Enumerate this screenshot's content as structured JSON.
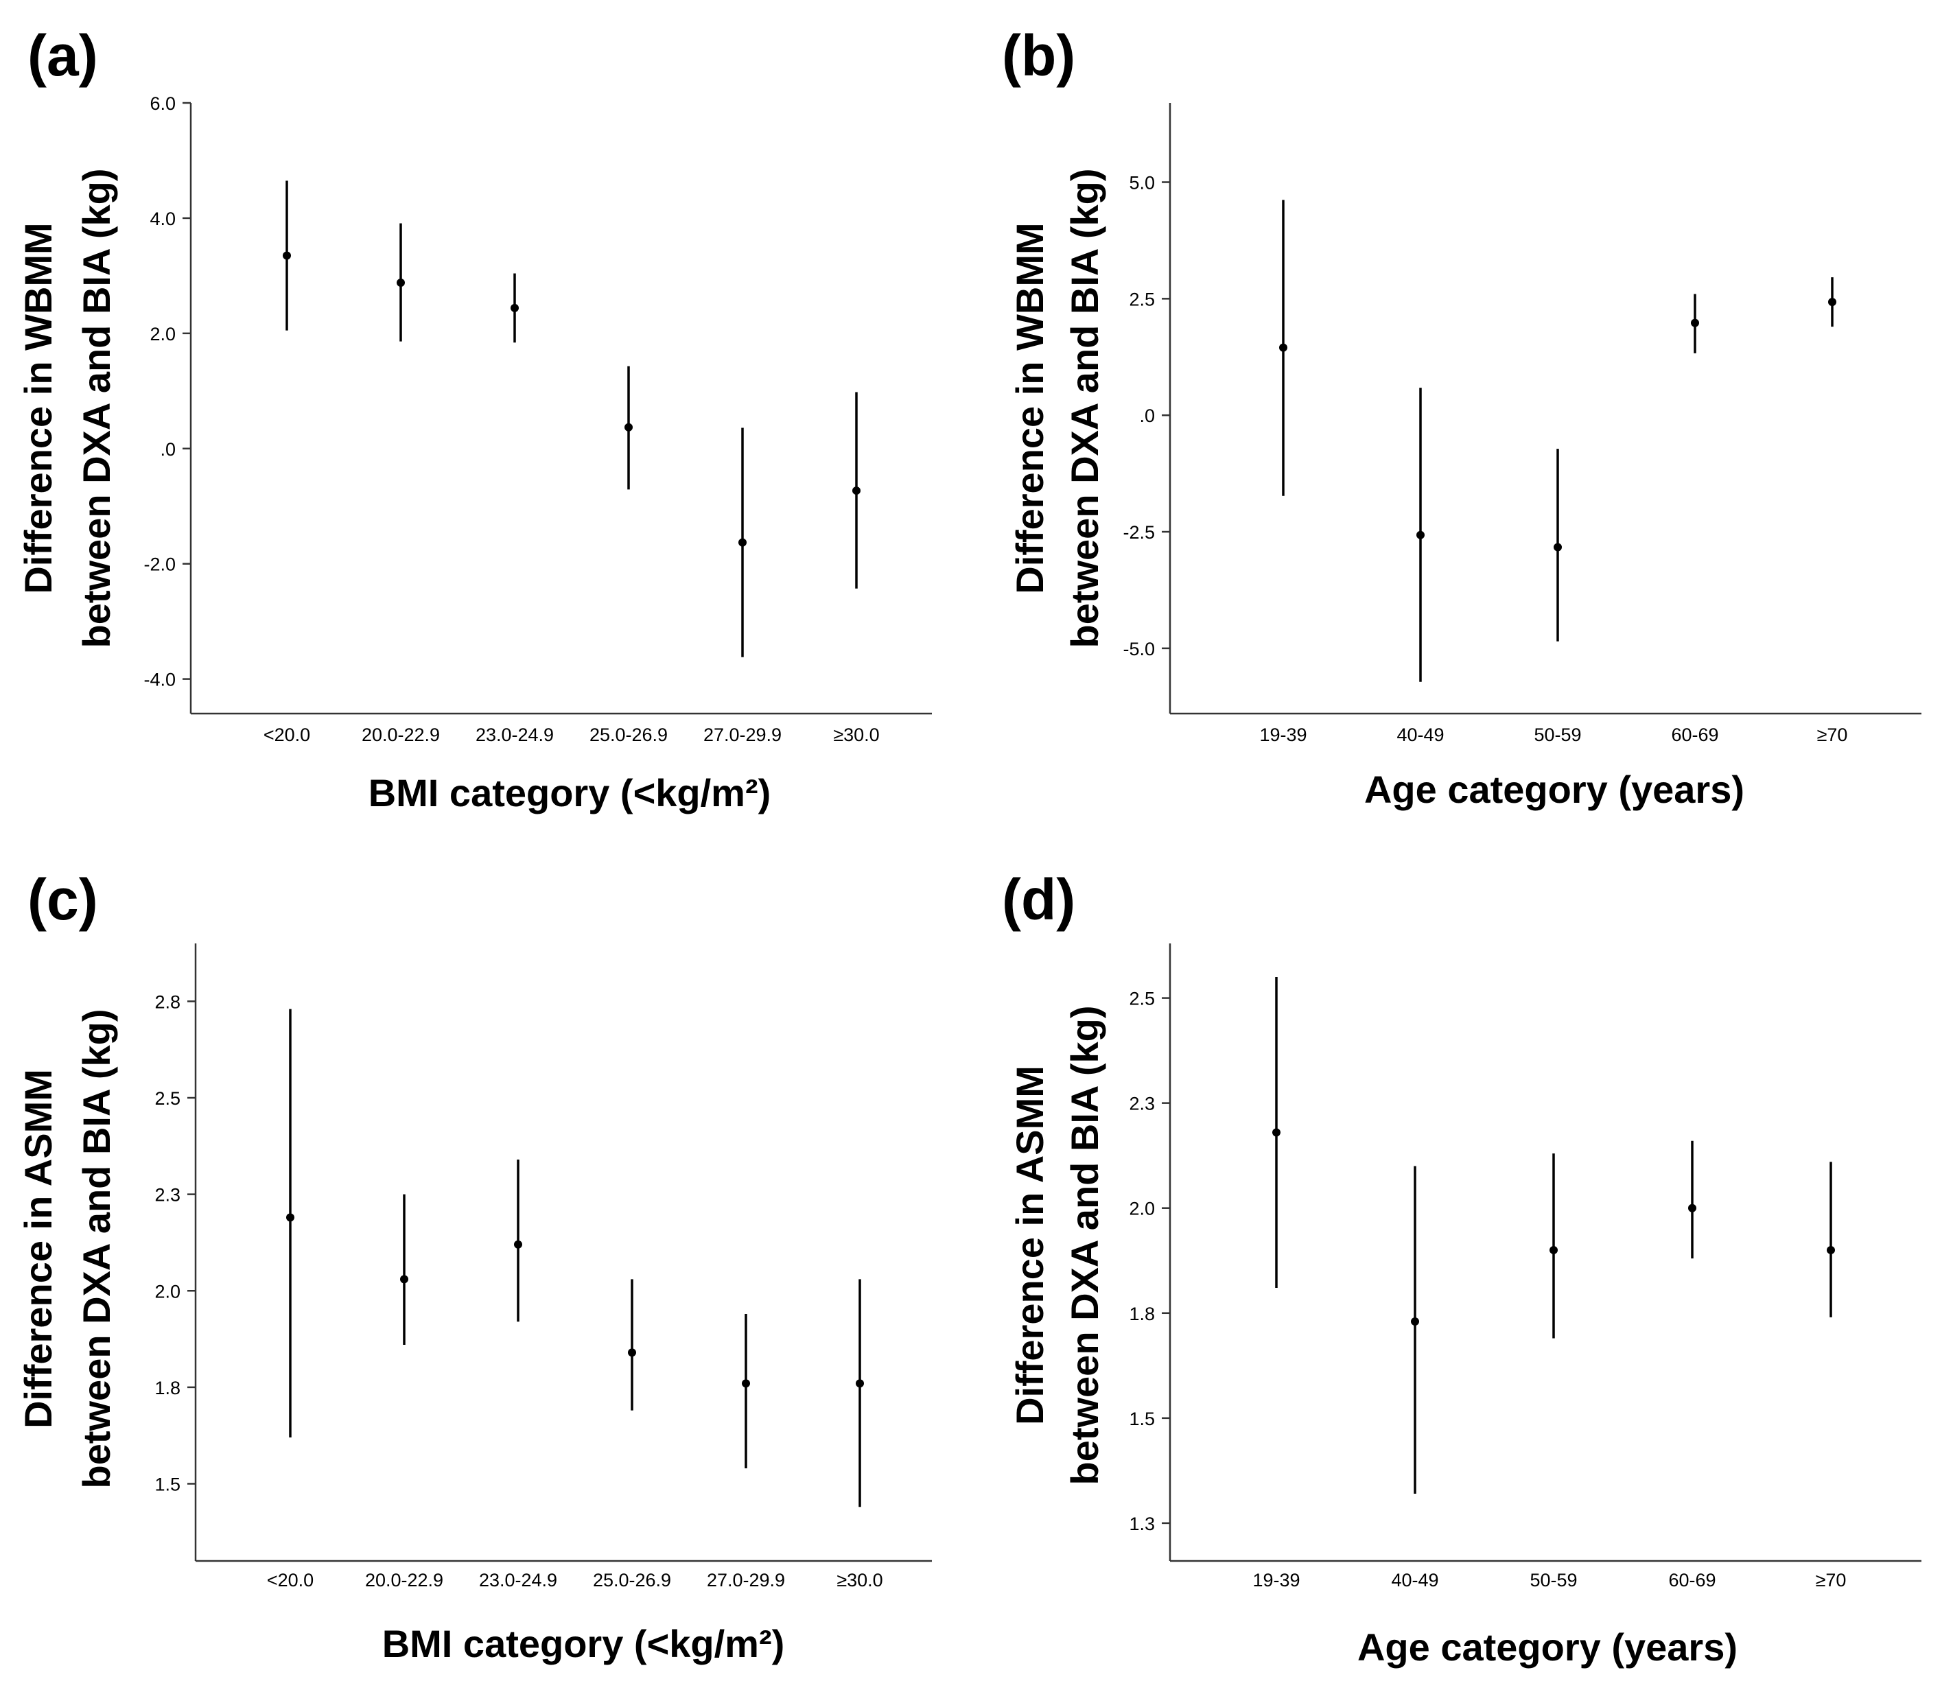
{
  "colors": {
    "marks": "#000000",
    "axis": "#333333",
    "background": "#ffffff"
  },
  "chart_data": [
    {
      "panel": "(a)",
      "type": "errorbar",
      "title": "",
      "xlabel": "BMI category (<kg/m²)",
      "ylabel": [
        "Difference in WBMM",
        "between DXA and BIA (kg)"
      ],
      "ylim": [
        -4.6,
        6.0
      ],
      "yticks": [
        6.0,
        4.0,
        2.0,
        0.0
      ],
      "yticks_more": [
        -2.0,
        -4.0
      ],
      "ytick_labels": [
        "6.0",
        "4.0",
        "2.0",
        ".0",
        "-2.0",
        "-4.0"
      ],
      "categories": [
        "<20.0",
        "20.0-22.9",
        "23.0-24.9",
        "25.0-26.9",
        "27.0-29.9",
        "≥30.0"
      ],
      "mean": [
        3.35,
        2.88,
        2.44,
        0.37,
        -1.63,
        -0.73
      ],
      "lower": [
        2.05,
        1.86,
        1.84,
        -0.71,
        -3.62,
        -2.43
      ],
      "upper": [
        4.65,
        3.91,
        3.04,
        1.43,
        0.36,
        0.98
      ]
    },
    {
      "panel": "(b)",
      "type": "errorbar",
      "title": "",
      "xlabel": "Age category (years)",
      "ylabel": [
        "Difference in WBMM",
        "between DXA and BIA (kg)"
      ],
      "ylim": [
        -6.4,
        6.7
      ],
      "ytick_values": [
        5.0,
        2.5,
        0.0,
        -2.5,
        -5.0
      ],
      "ytick_labels": [
        "5.0",
        "2.5",
        ".0",
        "-2.5",
        "-5.0"
      ],
      "categories": [
        "19-39",
        "40-49",
        "50-59",
        "60-69",
        "≥70"
      ],
      "mean": [
        1.45,
        -2.57,
        -2.83,
        1.98,
        2.43
      ],
      "lower": [
        -1.73,
        -5.72,
        -4.85,
        1.33,
        1.9
      ],
      "upper": [
        4.62,
        0.59,
        -0.72,
        2.6,
        2.96
      ]
    },
    {
      "panel": "(c)",
      "type": "errorbar",
      "title": "",
      "xlabel": "BMI category (<kg/m²)",
      "ylabel": [
        "Difference in ASMM",
        "between DXA and BIA (kg)"
      ],
      "ylim": [
        1.35,
        2.95
      ],
      "ytick_values": [
        2.8,
        2.55,
        2.3,
        2.05,
        1.8,
        1.55
      ],
      "ytick_labels": [
        "2.8",
        "2.5",
        "2.3",
        "2.0",
        "1.8",
        "1.5"
      ],
      "categories": [
        "<20.0",
        "20.0-22.9",
        "23.0-24.9",
        "25.0-26.9",
        "27.0-29.9",
        "≥30.0"
      ],
      "mean": [
        2.24,
        2.08,
        2.17,
        1.89,
        1.81,
        1.81
      ],
      "lower": [
        1.67,
        1.91,
        1.97,
        1.74,
        1.59,
        1.49
      ],
      "upper": [
        2.78,
        2.3,
        2.39,
        2.08,
        1.99,
        2.08
      ]
    },
    {
      "panel": "(d)",
      "type": "errorbar",
      "title": "",
      "xlabel": "Age category (years)",
      "ylabel": [
        "Difference in ASMM",
        "between DXA and BIA (kg)"
      ],
      "ylim": [
        1.21,
        2.68
      ],
      "ytick_values": [
        2.55,
        2.3,
        2.05,
        1.8,
        1.55,
        1.3
      ],
      "ytick_labels": [
        "2.5",
        "2.3",
        "2.0",
        "1.8",
        "1.5",
        "1.3"
      ],
      "categories": [
        "19-39",
        "40-49",
        "50-59",
        "60-69",
        "≥70"
      ],
      "mean": [
        2.23,
        1.78,
        1.95,
        2.05,
        1.95
      ],
      "lower": [
        1.86,
        1.37,
        1.74,
        1.93,
        1.79
      ],
      "upper": [
        2.6,
        2.15,
        2.18,
        2.21,
        2.16
      ]
    }
  ]
}
